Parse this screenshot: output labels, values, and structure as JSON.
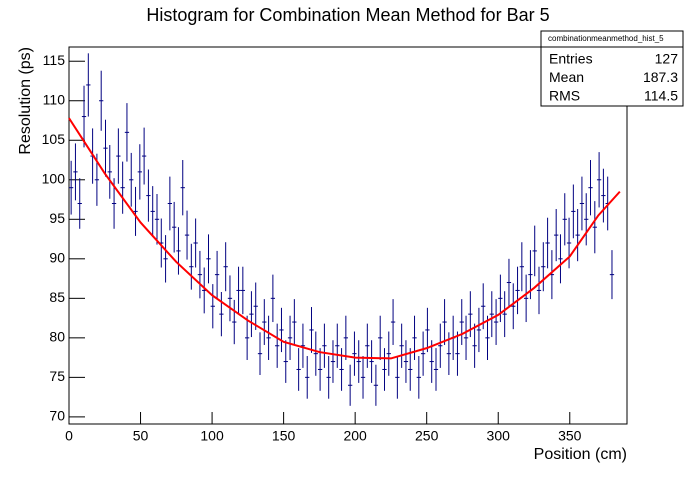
{
  "chart_data": {
    "type": "histogram_errors",
    "title": "Histogram for Combination Mean Method for Bar 5",
    "x_label": "Position (cm)",
    "y_label": "Resolution (ps)",
    "xlim": [
      0,
      390
    ],
    "ylim": [
      69.1,
      116.8
    ],
    "xticks": [
      0,
      50,
      100,
      150,
      200,
      250,
      300,
      350
    ],
    "yticks": [
      70,
      75,
      80,
      85,
      90,
      95,
      100,
      105,
      110,
      115
    ],
    "stats": {
      "name": "combinationmeanmethod_hist_5",
      "rows": [
        [
          "Entries",
          127
        ],
        [
          "Mean",
          187.3
        ],
        [
          "RMS",
          114.5
        ]
      ]
    },
    "series": [
      {
        "color": "#000080",
        "x": [
          1.5,
          4.5,
          7.5,
          10.5,
          13.5,
          16.5,
          19.5,
          22.5,
          25.5,
          28.5,
          31.5,
          34.5,
          37.5,
          40.5,
          43.5,
          46.5,
          49.5,
          52.5,
          55.5,
          58.5,
          61.5,
          64.5,
          67.5,
          70.5,
          73.5,
          76.5,
          79.5,
          82.5,
          85.5,
          88.5,
          91.5,
          94.5,
          97.5,
          100.5,
          103.5,
          106.5,
          109.5,
          112.5,
          115.5,
          118.5,
          121.5,
          124.5,
          127.5,
          130.5,
          133.5,
          136.5,
          139.5,
          142.5,
          145.5,
          148.5,
          151.5,
          154.5,
          157.5,
          160.5,
          163.5,
          166.5,
          169.5,
          172.5,
          175.5,
          178.5,
          181.5,
          184.5,
          187.5,
          190.5,
          193.5,
          196.5,
          199.5,
          202.5,
          205.5,
          208.5,
          211.5,
          214.5,
          217.5,
          220.5,
          223.5,
          226.5,
          229.5,
          232.5,
          235.5,
          238.5,
          241.5,
          244.5,
          247.5,
          250.5,
          253.5,
          256.5,
          259.5,
          262.5,
          265.5,
          268.5,
          271.5,
          274.5,
          277.5,
          280.5,
          283.5,
          286.5,
          289.5,
          292.5,
          295.5,
          298.5,
          301.5,
          304.5,
          307.5,
          310.5,
          313.5,
          316.5,
          319.5,
          322.5,
          325.5,
          328.5,
          331.5,
          334.5,
          337.5,
          340.5,
          343.5,
          346.5,
          349.5,
          352.5,
          355.5,
          358.5,
          361.5,
          364.5,
          367.5,
          370.5,
          373.5,
          376.5,
          379.5
        ],
        "values": [
          99,
          101,
          97,
          108,
          112,
          103,
          100,
          110,
          104,
          101,
          97,
          103,
          99,
          106,
          100,
          96,
          101,
          103,
          98,
          96,
          95,
          92,
          90,
          97,
          94,
          91,
          99,
          93,
          89,
          92,
          88,
          86,
          90,
          84,
          88,
          83,
          89,
          85,
          82,
          86,
          86,
          80,
          83,
          84,
          78,
          82,
          80,
          85,
          79,
          81,
          77,
          80,
          82,
          76,
          79,
          75,
          81,
          78,
          76,
          79,
          75,
          77,
          79,
          76,
          80,
          74,
          78,
          77,
          75,
          79,
          77,
          74,
          80,
          76,
          78,
          82,
          75,
          79,
          77,
          76,
          80,
          75,
          78,
          81,
          77,
          76,
          79,
          82,
          78,
          80,
          78,
          82,
          80,
          83,
          79,
          81,
          84,
          80,
          83,
          82,
          85,
          83,
          87,
          84,
          86,
          89,
          85,
          88,
          91,
          86,
          89,
          92,
          88,
          93,
          90,
          95,
          92,
          96,
          93,
          97,
          95,
          99,
          94,
          100,
          98,
          97,
          88
        ],
        "errors": [
          3.4,
          3.6,
          3.2,
          3.9,
          4.0,
          3.5,
          3.3,
          3.8,
          3.6,
          3.4,
          3.2,
          3.5,
          3.3,
          3.7,
          3.4,
          3.1,
          3.5,
          3.6,
          3.3,
          3.2,
          3.2,
          3.1,
          3.0,
          3.4,
          3.2,
          3.0,
          3.5,
          3.1,
          2.9,
          3.1,
          3.0,
          2.9,
          3.1,
          2.8,
          3.0,
          2.8,
          3.1,
          2.9,
          2.8,
          3.0,
          3.0,
          2.8,
          2.9,
          3.0,
          2.7,
          2.9,
          2.8,
          3.0,
          2.8,
          2.8,
          2.7,
          2.8,
          2.9,
          2.7,
          2.8,
          2.7,
          2.9,
          2.8,
          2.7,
          2.8,
          2.7,
          2.7,
          2.8,
          2.7,
          2.8,
          2.6,
          2.8,
          2.7,
          2.7,
          2.8,
          2.7,
          2.6,
          2.8,
          2.7,
          2.8,
          2.9,
          2.7,
          2.8,
          2.7,
          2.7,
          2.8,
          2.7,
          2.8,
          2.8,
          2.7,
          2.7,
          2.8,
          2.9,
          2.7,
          2.8,
          2.8,
          2.9,
          2.8,
          2.9,
          2.8,
          2.8,
          2.9,
          2.8,
          2.9,
          2.9,
          3.0,
          2.9,
          3.0,
          2.9,
          3.0,
          3.1,
          3.0,
          3.1,
          3.2,
          3.0,
          3.1,
          3.2,
          3.1,
          3.3,
          3.1,
          3.3,
          3.2,
          3.4,
          3.3,
          3.4,
          3.3,
          3.5,
          3.3,
          3.5,
          3.4,
          3.4,
          3.1
        ]
      },
      {
        "color": "#ff0000",
        "x": [
          0,
          25,
          50,
          75,
          100,
          125,
          150,
          175,
          200,
          225,
          250,
          275,
          300,
          325,
          350,
          370,
          385
        ],
        "values": [
          107.8,
          100.8,
          94.6,
          89.6,
          85.4,
          82.2,
          79.5,
          78.2,
          77.5,
          77.4,
          78.7,
          80.5,
          82.9,
          86.3,
          90.3,
          95.5,
          98.5
        ]
      }
    ]
  }
}
